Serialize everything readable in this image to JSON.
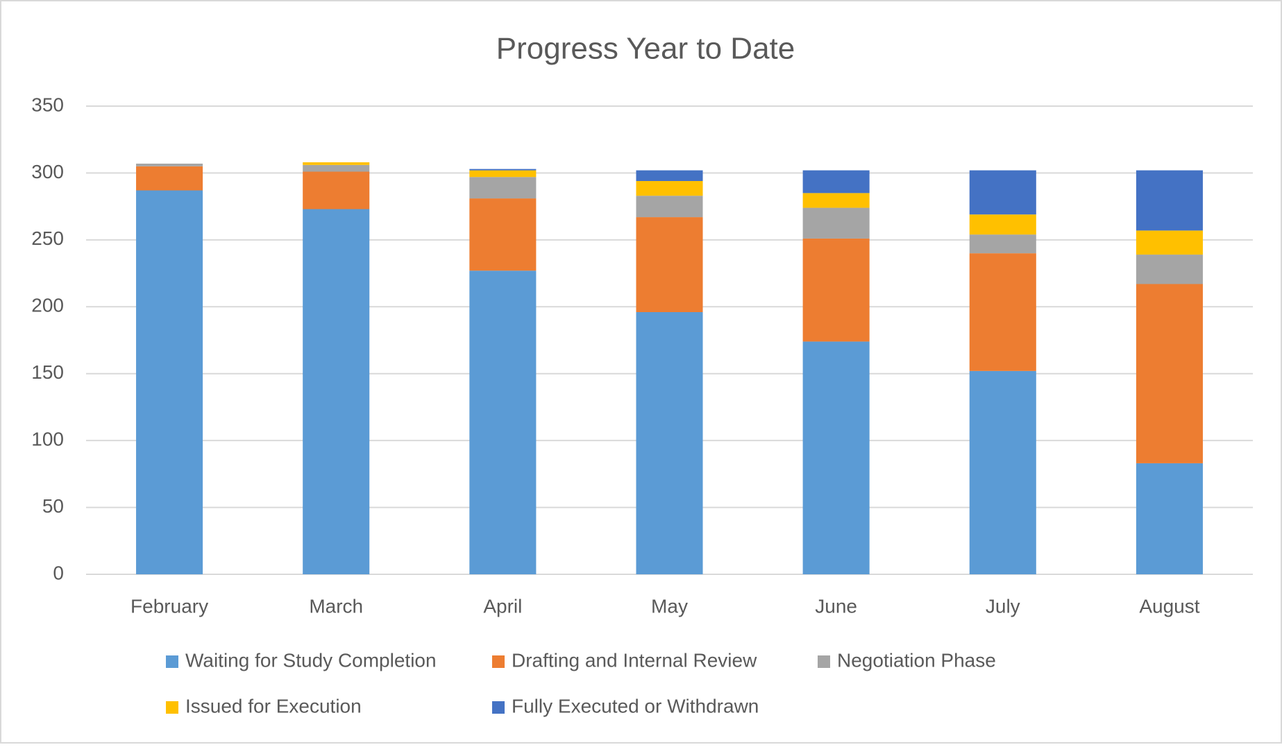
{
  "chart_data": {
    "type": "stacked_bar",
    "title": "Progress Year to Date",
    "categories": [
      "February",
      "March",
      "April",
      "May",
      "June",
      "July",
      "August"
    ],
    "series": [
      {
        "name": "Waiting for Study Completion",
        "color": "#5b9bd5",
        "values": [
          287,
          273,
          227,
          196,
          174,
          152,
          83
        ]
      },
      {
        "name": "Drafting and Internal Review",
        "color": "#ed7d31",
        "values": [
          18,
          28,
          54,
          71,
          77,
          88,
          134
        ]
      },
      {
        "name": "Negotiation Phase",
        "color": "#a5a5a5",
        "values": [
          2,
          5,
          16,
          16,
          23,
          14,
          22
        ]
      },
      {
        "name": "Issued for Execution",
        "color": "#ffc000",
        "values": [
          0,
          2,
          5,
          11,
          11,
          15,
          18
        ]
      },
      {
        "name": "Fully Executed or Withdrawn",
        "color": "#4472c4",
        "values": [
          0,
          0,
          1,
          8,
          17,
          33,
          45
        ]
      }
    ],
    "ylim": [
      0,
      350
    ],
    "yticks": [
      0,
      50,
      100,
      150,
      200,
      250,
      300,
      350
    ],
    "grid": true,
    "legend": "bottom"
  }
}
